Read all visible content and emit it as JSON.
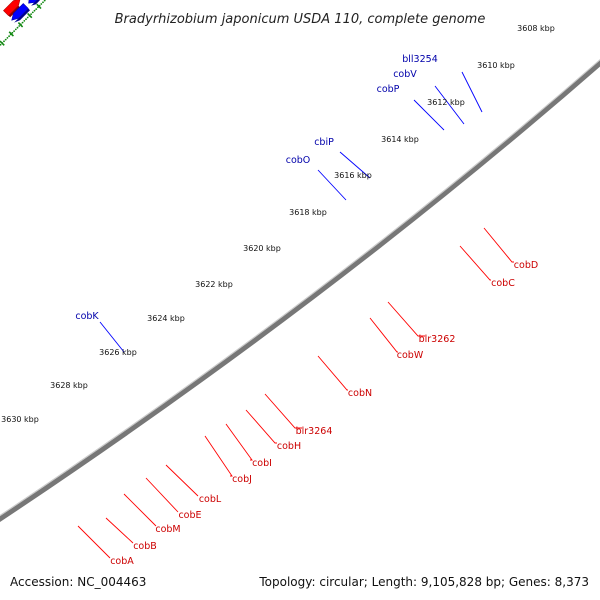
{
  "title": "Bradyrhizobium japonicum USDA 110, complete genome",
  "footer": {
    "accession": "Accession: NC_004463",
    "summary": "Topology: circular; Length: 9,105,828 bp; Genes: 8,373"
  },
  "colors": {
    "forward": "#ff0000",
    "reverse": "#0000ff",
    "ticks": "#118811",
    "backbone": "#777777",
    "forward_label": "#cc0000",
    "reverse_label": "#0000aa",
    "cobD": "#4682b4",
    "cobW": "#bbbbbb",
    "blr3262": "#666666",
    "bll3254": "#00e6e6",
    "lime": "#99ee33",
    "cobN_overlap": "#554488"
  },
  "kbp_labels": [
    "3608 kbp",
    "3610 kbp",
    "3612 kbp",
    "3614 kbp",
    "3616 kbp",
    "3618 kbp",
    "3620 kbp",
    "3622 kbp",
    "3624 kbp",
    "3626 kbp",
    "3628 kbp",
    "3630 kbp"
  ],
  "reverse_gene_labels": [
    "bll3254",
    "cobV",
    "cobP",
    "cbiP",
    "cobO",
    "cobK"
  ],
  "forward_gene_labels": [
    "cobD",
    "cobC",
    "blr3262",
    "cobW",
    "cobN",
    "blr3264",
    "cobH",
    "cobI",
    "cobJ",
    "cobL",
    "cobE",
    "cobM",
    "cobB",
    "cobA"
  ]
}
